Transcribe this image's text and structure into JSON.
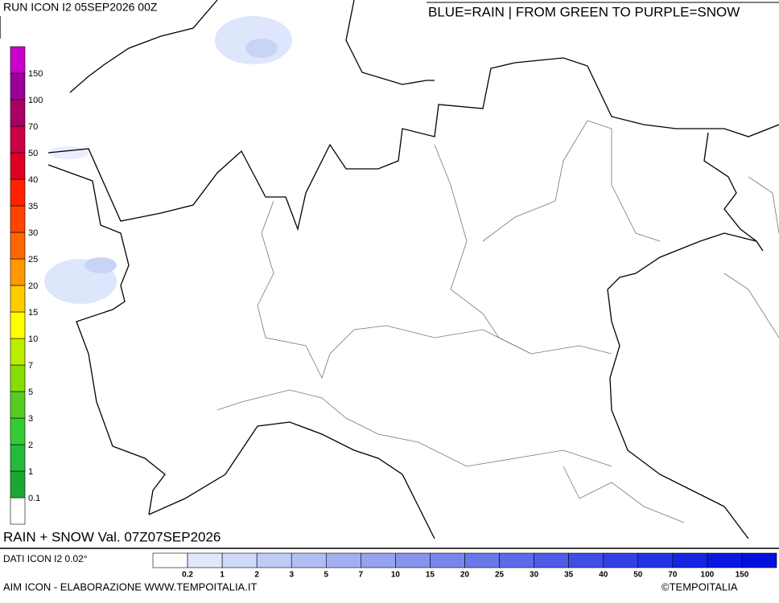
{
  "header": {
    "run": "RUN ICON I2 05SEP2026 00Z",
    "legend_title": "BLUE=RAIN | FROM GREEN TO PURPLE=SNOW"
  },
  "snow_scale": {
    "colors": [
      "#ffffff",
      "#1aa832",
      "#22bb3a",
      "#33cc33",
      "#55cc22",
      "#88dd00",
      "#bbee00",
      "#ffff00",
      "#ffcc00",
      "#ff9900",
      "#ff6600",
      "#ff4400",
      "#ff2200",
      "#dd0022",
      "#cc0044",
      "#aa0066",
      "#990099",
      "#cc00cc"
    ],
    "labels": [
      0.1,
      1,
      2,
      3,
      5,
      7,
      10,
      15,
      20,
      25,
      30,
      35,
      40,
      50,
      70,
      100,
      150
    ]
  },
  "map_label": "RAIN + SNOW Val. 07Z07SEP2026",
  "footer": {
    "data_note": "DATI ICON I2 0.02°",
    "credit": "AIM ICON - ELABORAZIONE WWW.TEMPOITALIA.IT",
    "copyright": "©TEMPOITALIA"
  },
  "rain_scale": {
    "colors": [
      "#ffffff",
      "#e0e8fb",
      "#cfdaf8",
      "#c0ccf6",
      "#b0bef4",
      "#a2b0f2",
      "#94a2f0",
      "#8694ee",
      "#7886ec",
      "#6a78ea",
      "#5c6aea",
      "#4e5ce8",
      "#404ee8",
      "#3240e6",
      "#2432e6",
      "#1624e4",
      "#0a18e2",
      "#0010e0"
    ],
    "labels": [
      0.2,
      1,
      2,
      3,
      5,
      7,
      10,
      15,
      20,
      25,
      30,
      35,
      40,
      50,
      70,
      100,
      150
    ]
  }
}
